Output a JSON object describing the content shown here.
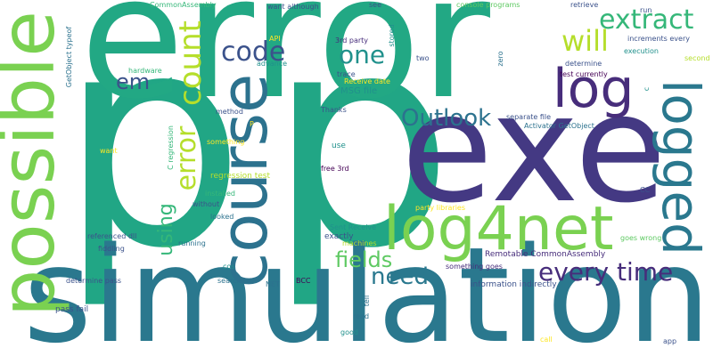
{
  "palette": {
    "yellow": "#cfe11b",
    "light_green": "#7ad151",
    "green": "#35b779",
    "teal": "#21918c",
    "blue_teal": "#2c728e",
    "indigo": "#3b528b",
    "purple": "#472d7b",
    "dark_purple": "#440154"
  },
  "words": {
    "p": "p",
    "error": "error",
    "exe": "exe",
    "simulation": "simulation",
    "possible": "possible",
    "course": "course",
    "log4net": "log4net",
    "logged": "logged",
    "log": "log",
    "count": "count",
    "extract": "extract",
    "will": "will",
    "code": "code",
    "one": "one",
    "em": "em",
    "Outlook": "Outlook",
    "fields": "fields",
    "need": "need",
    "every_time": "every time",
    "using": "using",
    "CommonAssembly": "CommonAssembly",
    "want_although": "want although",
    "see": "see",
    "console_programs": "console programs",
    "retrieve": "retrieve",
    "run": "run",
    "increments_every": "increments every",
    "execution": "execution",
    "second": "second",
    "API": "API",
    "3rd_party": "3rd party",
    "two": "two",
    "zero": "zero",
    "stored": "stored",
    "determine": "determine",
    "test_currently": "test currently",
    "c": "c",
    "GetObject_typeof": "GetObject typeof",
    "hardware": "hardware",
    "advance": "advance",
    "trace": "trace",
    "Receive_date": "Receive date",
    "MSG_file": "MSG file",
    "method": "method",
    "Thanks": "Thanks",
    "separate_file": "separate file",
    "Activator_GetObject": "Activator GetObject",
    "C_regression": "C regression",
    "something": "something",
    "want": "want",
    "use": "use",
    "free_3rd": "free 3rd",
    "regression_test": "regression test",
    "installed": "installed",
    "without": "without",
    "looked": "looked",
    "party_libraries": "party libraries",
    "CC": "CC",
    "referenced_dll": "referenced dll",
    "fiddling": "fiddling",
    "running": "running",
    "Sent_Receive": "Sent Receive",
    "exactly": "exactly",
    "machines": "machines",
    "Remotable_CommonAssembly": "Remotable CommonAssembly",
    "goes_wrong": "goes wrong",
    "cos": "cos",
    "determine_pass": "determine pass",
    "search": "search",
    "BCC": "BCC",
    "NET": "NET",
    "something_goes": "something goes",
    "information_indirectly": "information indirectly",
    "pass_fail": "pass fail",
    "tell": "tell",
    "read": "read",
    "good": "good",
    "call": "call",
    "app": "app",
    "P": "P"
  }
}
